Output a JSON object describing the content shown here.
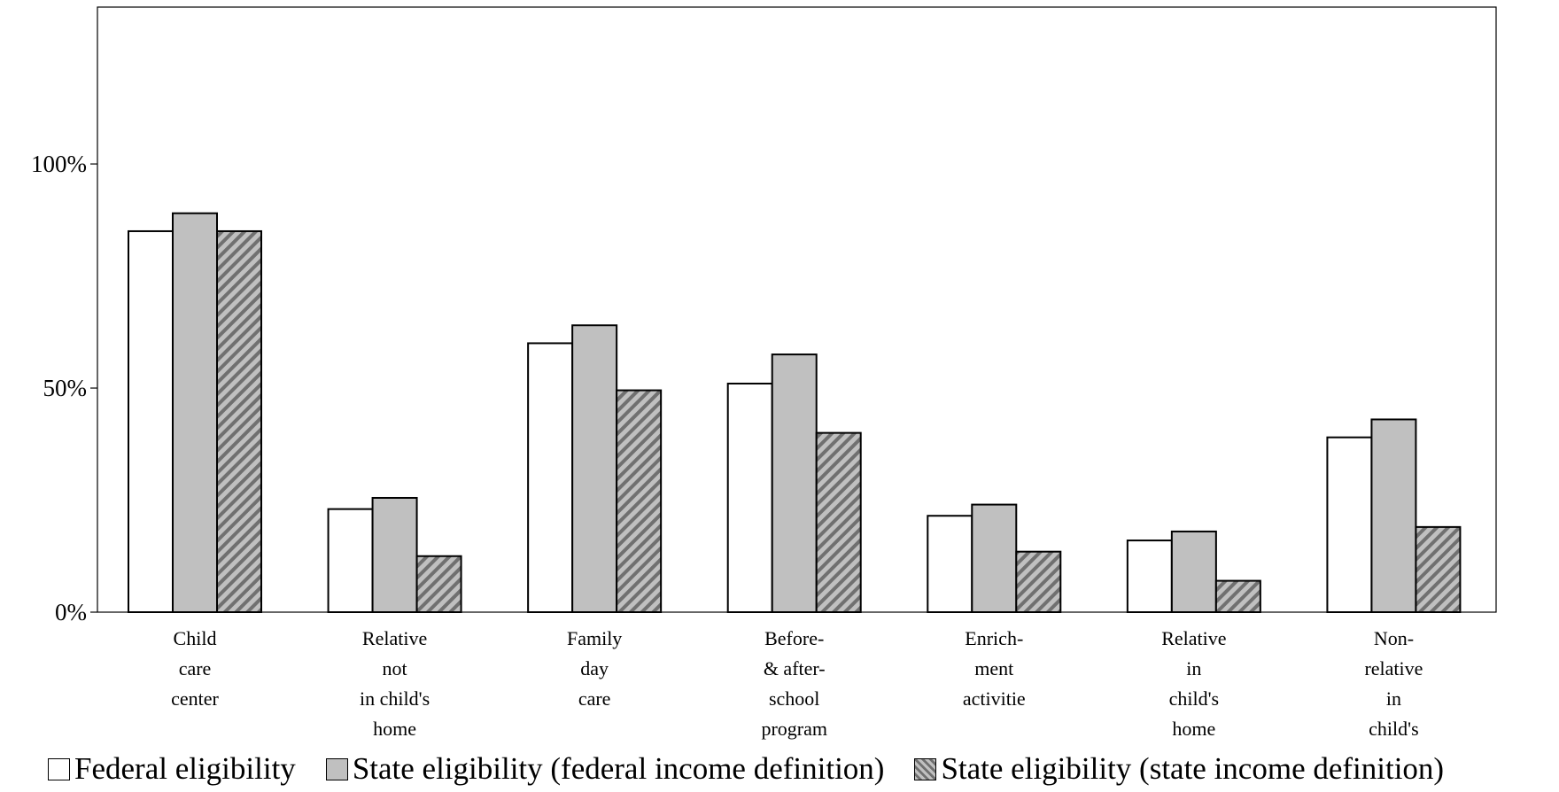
{
  "chart_data": {
    "type": "bar",
    "categories": [
      [
        "Child",
        "care",
        "center"
      ],
      [
        "Relative",
        "not",
        "in child's",
        "home"
      ],
      [
        "Family",
        "day",
        "care"
      ],
      [
        "Before-",
        "& after-",
        "school",
        "program"
      ],
      [
        "Enrich-",
        "ment",
        "activitie"
      ],
      [
        "Relative",
        "in",
        "child's",
        "home"
      ],
      [
        "Non-",
        "relative",
        "in",
        "child's"
      ]
    ],
    "series": [
      {
        "name": "Federal eligibility",
        "values": [
          85,
          23,
          60,
          51,
          21.5,
          16,
          39
        ]
      },
      {
        "name": "State eligibility (federal income definition)",
        "values": [
          89,
          25.5,
          64,
          57.5,
          24,
          18,
          43
        ]
      },
      {
        "name": "State eligibility (state income definition)",
        "values": [
          85,
          12.5,
          49.5,
          40,
          13.5,
          7,
          19
        ]
      }
    ],
    "yticks": [
      "0%",
      "50%",
      "100%"
    ],
    "ytick_values": [
      0,
      50,
      100
    ],
    "ylim": [
      0,
      135
    ],
    "colors": {
      "federal": "#ffffff",
      "state_fed": "#c0c0c0",
      "state_state": "#c0c0c0",
      "hatch": "#707070",
      "outline": "#000000"
    },
    "grid": false,
    "legend_position": "bottom"
  },
  "legend": {
    "federal": "Federal eligibility",
    "state_fed": "State eligibility (federal income definition)",
    "state_state": "State eligibility (state income definition)"
  }
}
